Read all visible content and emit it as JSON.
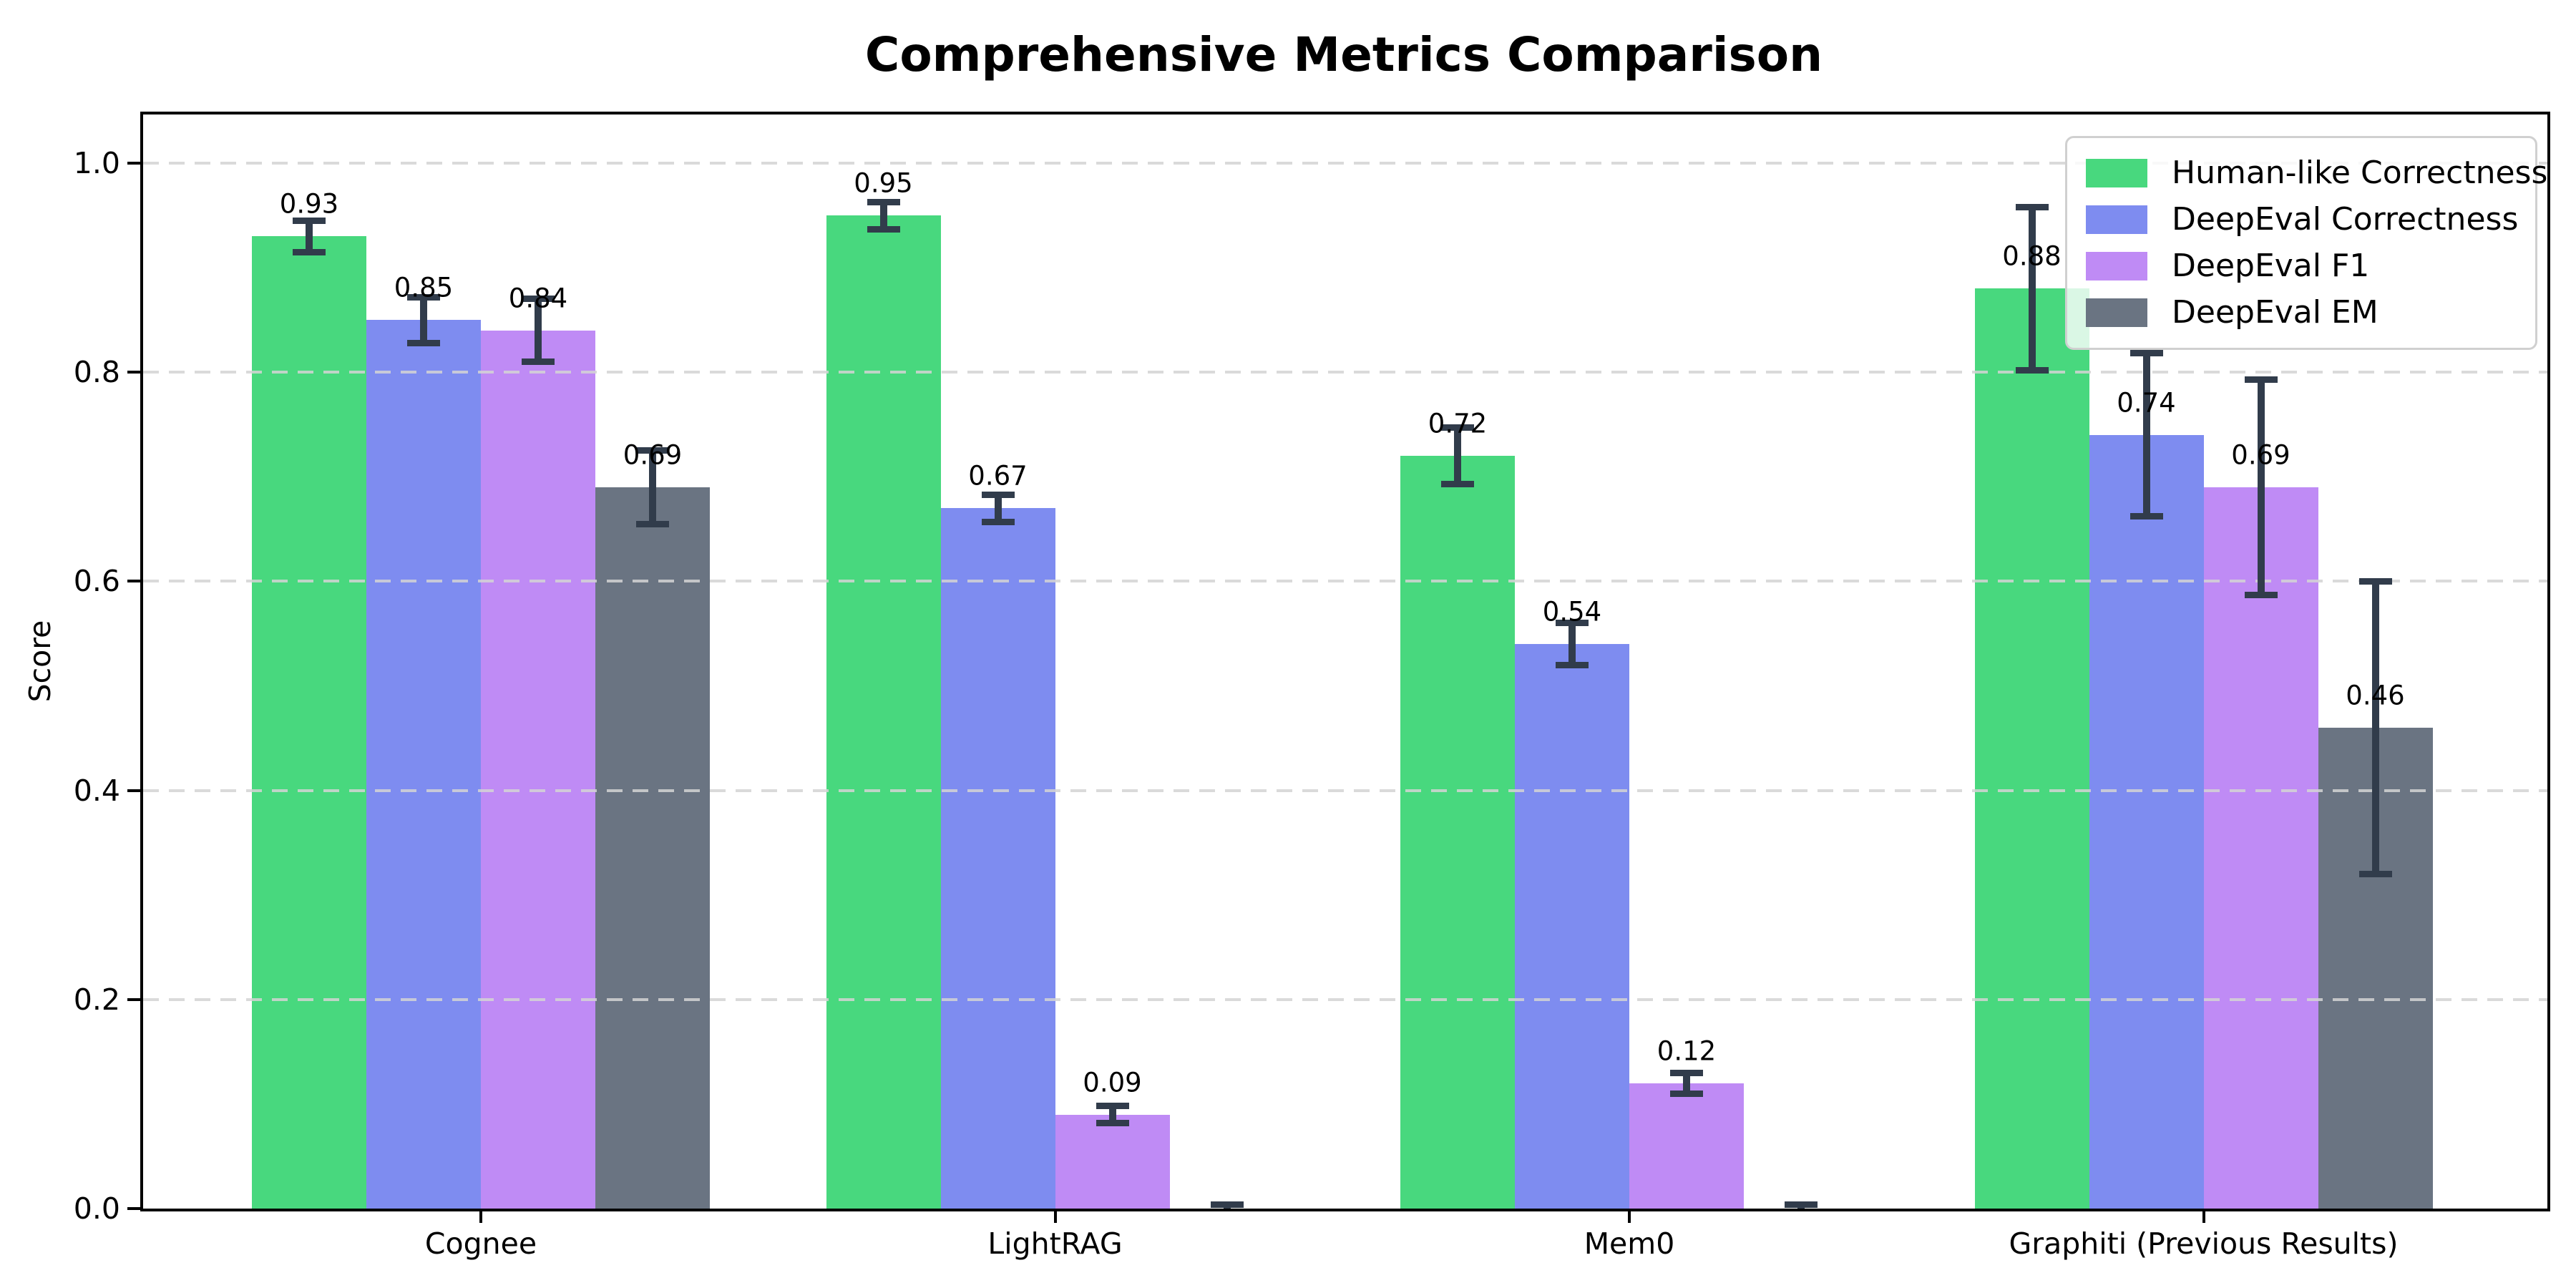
{
  "chart_data": {
    "type": "bar",
    "title": "Comprehensive Metrics Comparison",
    "xlabel": "",
    "ylabel": "Score",
    "ylim": [
      0,
      1.05
    ],
    "yticks": [
      0.0,
      0.2,
      0.4,
      0.6,
      0.8,
      1.0
    ],
    "grid": "horizontal-dashed",
    "legend_position": "upper right",
    "categories": [
      "Cognee",
      "LightRAG",
      "Mem0",
      "Graphiti (Previous Results)"
    ],
    "series": [
      {
        "name": "Human-like Correctness",
        "color": "#48d87e",
        "values": [
          0.93,
          0.95,
          0.72,
          0.88
        ],
        "errors": [
          0.015,
          0.013,
          0.027,
          0.078
        ],
        "labels": [
          "0.93",
          "0.95",
          "0.72",
          "0.88"
        ]
      },
      {
        "name": "DeepEval Correctness",
        "color": "#7e8cf0",
        "values": [
          0.85,
          0.67,
          0.54,
          0.74
        ],
        "errors": [
          0.022,
          0.013,
          0.02,
          0.078
        ],
        "labels": [
          "0.85",
          "0.67",
          "0.54",
          "0.74"
        ]
      },
      {
        "name": "DeepEval F1",
        "color": "#bf8bf5",
        "values": [
          0.84,
          0.09,
          0.12,
          0.69
        ],
        "errors": [
          0.03,
          0.008,
          0.01,
          0.103
        ],
        "labels": [
          "0.84",
          "0.09",
          "0.12",
          "0.69"
        ]
      },
      {
        "name": "DeepEval EM",
        "color": "#6a7482",
        "values": [
          0.69,
          0.0,
          0.0,
          0.46
        ],
        "errors": [
          0.035,
          0.004,
          0.004,
          0.14
        ],
        "labels": [
          "0.69",
          "",
          "",
          "0.46"
        ]
      }
    ],
    "colors": {
      "error_bar": "#313c4b",
      "grid": "#d4d4d4",
      "axis": "#000000",
      "legend_border": "#d0d0d0",
      "legend_background": "#ffffff"
    }
  }
}
